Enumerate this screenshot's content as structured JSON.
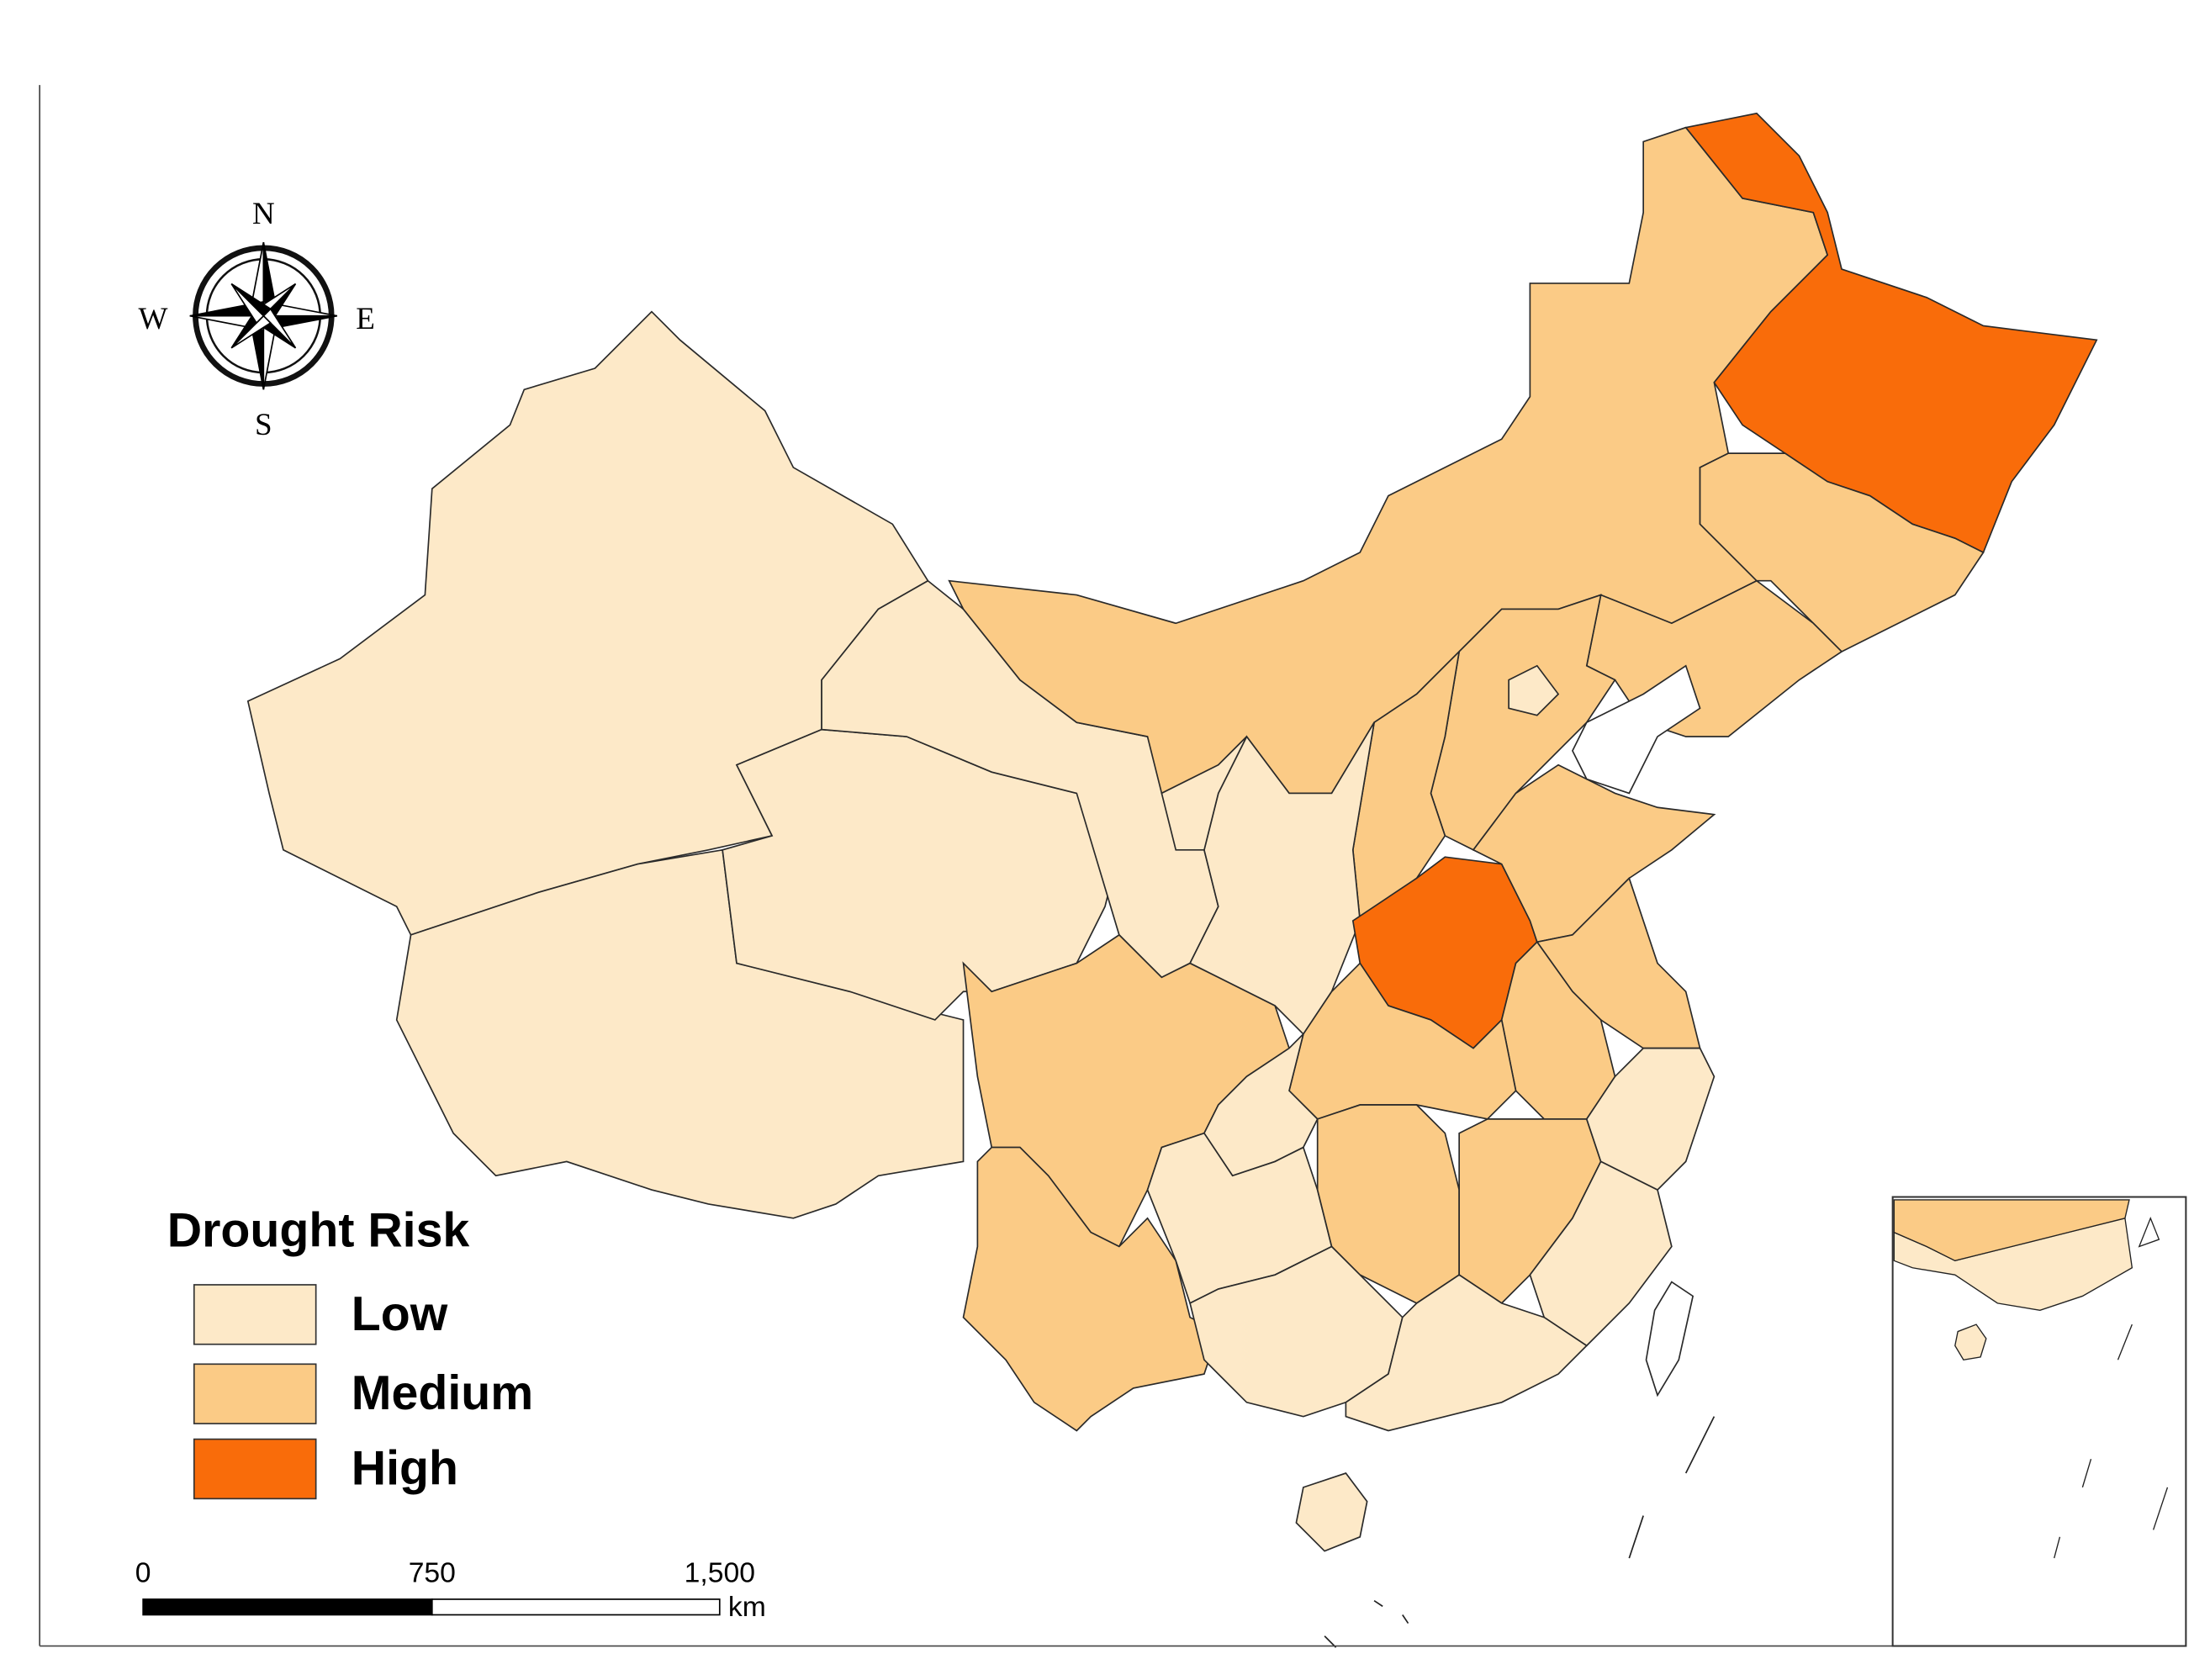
{
  "compass": {
    "north": "N",
    "south": "S",
    "west": "W",
    "east": "E"
  },
  "legend": {
    "title": "Drought Risk",
    "items": [
      {
        "label": "Low",
        "color": "#fde9c8"
      },
      {
        "label": "Medium",
        "color": "#fbcb86"
      },
      {
        "label": "High",
        "color": "#f96c0a"
      }
    ]
  },
  "scale_bar": {
    "labels": [
      "0",
      "750",
      "1,500"
    ],
    "unit": "km"
  }
}
